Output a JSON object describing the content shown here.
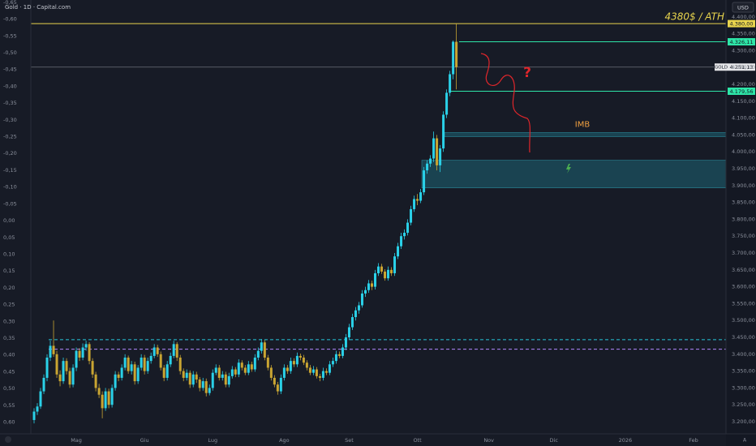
{
  "chart_data": {
    "type": "candlestick",
    "title": "Gold · 1D · Capital.com",
    "currency": "USD",
    "up_color": "#2ad1e8",
    "down_color": "#c9a532",
    "ohlc": [
      [
        3205,
        3240,
        3195,
        3230
      ],
      [
        3230,
        3255,
        3220,
        3245
      ],
      [
        3245,
        3300,
        3238,
        3290
      ],
      [
        3290,
        3340,
        3282,
        3330
      ],
      [
        3330,
        3400,
        3320,
        3390
      ],
      [
        3390,
        3440,
        3380,
        3425
      ],
      [
        3425,
        3500,
        3392,
        3400
      ],
      [
        3400,
        3410,
        3330,
        3340
      ],
      [
        3340,
        3352,
        3305,
        3320
      ],
      [
        3320,
        3390,
        3312,
        3380
      ],
      [
        3380,
        3388,
        3340,
        3350
      ],
      [
        3350,
        3360,
        3300,
        3310
      ],
      [
        3310,
        3370,
        3302,
        3360
      ],
      [
        3360,
        3420,
        3350,
        3410
      ],
      [
        3410,
        3418,
        3380,
        3390
      ],
      [
        3390,
        3432,
        3382,
        3420
      ],
      [
        3420,
        3440,
        3410,
        3430
      ],
      [
        3430,
        3436,
        3370,
        3380
      ],
      [
        3380,
        3388,
        3330,
        3340
      ],
      [
        3340,
        3348,
        3290,
        3300
      ],
      [
        3300,
        3312,
        3270,
        3280
      ],
      [
        3280,
        3290,
        3210,
        3240
      ],
      [
        3240,
        3300,
        3232,
        3290
      ],
      [
        3290,
        3298,
        3240,
        3250
      ],
      [
        3250,
        3310,
        3242,
        3300
      ],
      [
        3300,
        3350,
        3292,
        3340
      ],
      [
        3340,
        3348,
        3320,
        3330
      ],
      [
        3330,
        3370,
        3322,
        3360
      ],
      [
        3360,
        3400,
        3352,
        3390
      ],
      [
        3390,
        3396,
        3342,
        3350
      ],
      [
        3350,
        3380,
        3340,
        3370
      ],
      [
        3370,
        3378,
        3310,
        3320
      ],
      [
        3320,
        3368,
        3312,
        3360
      ],
      [
        3360,
        3400,
        3352,
        3390
      ],
      [
        3390,
        3398,
        3340,
        3350
      ],
      [
        3350,
        3390,
        3342,
        3380
      ],
      [
        3380,
        3405,
        3372,
        3395
      ],
      [
        3395,
        3430,
        3388,
        3420
      ],
      [
        3420,
        3428,
        3392,
        3400
      ],
      [
        3400,
        3408,
        3352,
        3360
      ],
      [
        3360,
        3368,
        3320,
        3330
      ],
      [
        3330,
        3380,
        3322,
        3370
      ],
      [
        3370,
        3405,
        3362,
        3395
      ],
      [
        3395,
        3440,
        3388,
        3430
      ],
      [
        3430,
        3436,
        3380,
        3390
      ],
      [
        3390,
        3398,
        3340,
        3350
      ],
      [
        3350,
        3358,
        3320,
        3330
      ],
      [
        3330,
        3355,
        3322,
        3345
      ],
      [
        3345,
        3352,
        3300,
        3310
      ],
      [
        3310,
        3350,
        3302,
        3340
      ],
      [
        3340,
        3348,
        3315,
        3325
      ],
      [
        3325,
        3332,
        3290,
        3300
      ],
      [
        3300,
        3330,
        3292,
        3320
      ],
      [
        3320,
        3328,
        3275,
        3285
      ],
      [
        3285,
        3310,
        3278,
        3300
      ],
      [
        3300,
        3355,
        3292,
        3345
      ],
      [
        3345,
        3370,
        3338,
        3360
      ],
      [
        3360,
        3368,
        3322,
        3330
      ],
      [
        3330,
        3350,
        3322,
        3340
      ],
      [
        3340,
        3348,
        3302,
        3310
      ],
      [
        3310,
        3345,
        3302,
        3335
      ],
      [
        3335,
        3365,
        3328,
        3355
      ],
      [
        3355,
        3362,
        3332,
        3340
      ],
      [
        3340,
        3385,
        3332,
        3375
      ],
      [
        3375,
        3382,
        3352,
        3360
      ],
      [
        3360,
        3368,
        3338,
        3345
      ],
      [
        3345,
        3380,
        3338,
        3370
      ],
      [
        3370,
        3378,
        3348,
        3355
      ],
      [
        3355,
        3400,
        3348,
        3390
      ],
      [
        3390,
        3420,
        3382,
        3410
      ],
      [
        3410,
        3445,
        3402,
        3435
      ],
      [
        3435,
        3442,
        3382,
        3390
      ],
      [
        3390,
        3398,
        3352,
        3360
      ],
      [
        3360,
        3368,
        3322,
        3330
      ],
      [
        3330,
        3338,
        3302,
        3310
      ],
      [
        3310,
        3318,
        3280,
        3290
      ],
      [
        3290,
        3340,
        3282,
        3330
      ],
      [
        3330,
        3370,
        3322,
        3360
      ],
      [
        3360,
        3368,
        3342,
        3350
      ],
      [
        3350,
        3390,
        3342,
        3380
      ],
      [
        3380,
        3388,
        3362,
        3370
      ],
      [
        3370,
        3405,
        3362,
        3395
      ],
      [
        3395,
        3402,
        3382,
        3390
      ],
      [
        3390,
        3398,
        3368,
        3375
      ],
      [
        3375,
        3382,
        3352,
        3360
      ],
      [
        3360,
        3368,
        3338,
        3345
      ],
      [
        3345,
        3365,
        3338,
        3355
      ],
      [
        3355,
        3362,
        3328,
        3335
      ],
      [
        3335,
        3342,
        3320,
        3330
      ],
      [
        3330,
        3360,
        3322,
        3350
      ],
      [
        3350,
        3358,
        3338,
        3345
      ],
      [
        3345,
        3380,
        3338,
        3370
      ],
      [
        3370,
        3390,
        3362,
        3380
      ],
      [
        3380,
        3410,
        3372,
        3400
      ],
      [
        3400,
        3408,
        3388,
        3395
      ],
      [
        3395,
        3430,
        3388,
        3420
      ],
      [
        3420,
        3460,
        3412,
        3450
      ],
      [
        3450,
        3490,
        3442,
        3480
      ],
      [
        3480,
        3520,
        3472,
        3510
      ],
      [
        3510,
        3540,
        3500,
        3530
      ],
      [
        3530,
        3555,
        3520,
        3545
      ],
      [
        3545,
        3590,
        3538,
        3580
      ],
      [
        3580,
        3600,
        3570,
        3590
      ],
      [
        3590,
        3620,
        3582,
        3610
      ],
      [
        3610,
        3618,
        3590,
        3600
      ],
      [
        3600,
        3650,
        3592,
        3640
      ],
      [
        3640,
        3670,
        3632,
        3660
      ],
      [
        3660,
        3668,
        3638,
        3645
      ],
      [
        3645,
        3652,
        3618,
        3625
      ],
      [
        3625,
        3660,
        3618,
        3650
      ],
      [
        3650,
        3658,
        3632,
        3640
      ],
      [
        3640,
        3700,
        3632,
        3690
      ],
      [
        3690,
        3730,
        3682,
        3720
      ],
      [
        3720,
        3760,
        3712,
        3750
      ],
      [
        3750,
        3770,
        3740,
        3760
      ],
      [
        3760,
        3800,
        3752,
        3790
      ],
      [
        3790,
        3840,
        3782,
        3830
      ],
      [
        3830,
        3870,
        3822,
        3860
      ],
      [
        3860,
        3875,
        3842,
        3855
      ],
      [
        3855,
        3890,
        3848,
        3880
      ],
      [
        3880,
        3955,
        3872,
        3945
      ],
      [
        3945,
        3975,
        3935,
        3965
      ],
      [
        3965,
        3990,
        3955,
        3980
      ],
      [
        3980,
        4060,
        3970,
        4040
      ],
      [
        4040,
        4050,
        3945,
        3960
      ],
      [
        3960,
        4020,
        3940,
        4010
      ],
      [
        4010,
        4120,
        4000,
        4110
      ],
      [
        4110,
        4185,
        4100,
        4175
      ],
      [
        4175,
        4240,
        4165,
        4230
      ],
      [
        4230,
        4330,
        4215,
        4326.11
      ],
      [
        4326.11,
        4380,
        4185,
        4251.13
      ]
    ],
    "xlim": [
      -1,
      213
    ],
    "xticks": [
      {
        "value": 13,
        "label": "Mag"
      },
      {
        "value": 34,
        "label": "Giu"
      },
      {
        "value": 55,
        "label": "Lug"
      },
      {
        "value": 77,
        "label": "Ago"
      },
      {
        "value": 97,
        "label": "Set"
      },
      {
        "value": 118,
        "label": "Ott"
      },
      {
        "value": 140,
        "label": "Nov"
      },
      {
        "value": 160,
        "label": "Dic"
      },
      {
        "value": 182,
        "label": "2026"
      },
      {
        "value": 203,
        "label": "Feb"
      }
    ],
    "ylim": [
      3164,
      4450
    ],
    "yticks": [
      {
        "value": 4400,
        "label": "4.400,00"
      },
      {
        "value": 4350,
        "label": "4.350,00"
      },
      {
        "value": 4300,
        "label": "4.300,00"
      },
      {
        "value": 4250,
        "label": "4.250,00"
      },
      {
        "value": 4200,
        "label": "4.200,00"
      },
      {
        "value": 4150,
        "label": "4.150,00"
      },
      {
        "value": 4100,
        "label": "4.100,00"
      },
      {
        "value": 4050,
        "label": "4.050,00"
      },
      {
        "value": 4000,
        "label": "4.000,00"
      },
      {
        "value": 3950,
        "label": "3.950,00"
      },
      {
        "value": 3900,
        "label": "3.900,00"
      },
      {
        "value": 3850,
        "label": "3.850,00"
      },
      {
        "value": 3800,
        "label": "3.800,00"
      },
      {
        "value": 3750,
        "label": "3.750,00"
      },
      {
        "value": 3700,
        "label": "3.700,00"
      },
      {
        "value": 3650,
        "label": "3.650,00"
      },
      {
        "value": 3600,
        "label": "3.600,00"
      },
      {
        "value": 3550,
        "label": "3.550,00"
      },
      {
        "value": 3500,
        "label": "3.500,00"
      },
      {
        "value": 3450,
        "label": "3.450,00"
      },
      {
        "value": 3400,
        "label": "3.400,00"
      },
      {
        "value": 3350,
        "label": "3.350,00"
      },
      {
        "value": 3300,
        "label": "3.300,00"
      },
      {
        "value": 3250,
        "label": "3.250,00"
      },
      {
        "value": 3200,
        "label": "3.200,00"
      }
    ],
    "y2lim": [
      0.635,
      -0.657
    ],
    "y2ticks": [
      {
        "value": -0.65,
        "label": "-0,65"
      },
      {
        "value": -0.6,
        "label": "-0,60"
      },
      {
        "value": -0.55,
        "label": "-0,55"
      },
      {
        "value": -0.5,
        "label": "-0,50"
      },
      {
        "value": -0.45,
        "label": "-0,45"
      },
      {
        "value": -0.4,
        "label": "-0,40"
      },
      {
        "value": -0.35,
        "label": "-0,35"
      },
      {
        "value": -0.3,
        "label": "-0,30"
      },
      {
        "value": -0.25,
        "label": "-0,25"
      },
      {
        "value": -0.2,
        "label": "-0,20"
      },
      {
        "value": -0.15,
        "label": "-0,15"
      },
      {
        "value": -0.1,
        "label": "-0,10"
      },
      {
        "value": -0.05,
        "label": "-0,05"
      },
      {
        "value": 0,
        "label": "0,00"
      },
      {
        "value": 0.05,
        "label": "0,05"
      },
      {
        "value": 0.1,
        "label": "0,10"
      },
      {
        "value": 0.15,
        "label": "0,15"
      },
      {
        "value": 0.2,
        "label": "0,20"
      },
      {
        "value": 0.25,
        "label": "0,25"
      },
      {
        "value": 0.3,
        "label": "0,30"
      },
      {
        "value": 0.35,
        "label": "0,35"
      },
      {
        "value": 0.4,
        "label": "0,40"
      },
      {
        "value": 0.45,
        "label": "0,45"
      },
      {
        "value": 0.5,
        "label": "0,50"
      },
      {
        "value": 0.55,
        "label": "0,55"
      },
      {
        "value": 0.6,
        "label": "0,60"
      }
    ],
    "grid": false,
    "levels": [
      {
        "value": 4380,
        "label": "4.380,00",
        "color": "#e8d44d"
      },
      {
        "value": 4326.11,
        "label": "4.326,11",
        "color": "#2ee6a8"
      },
      {
        "value": 4179.56,
        "label": "4.179,56",
        "color": "#2ee6a8"
      }
    ],
    "dashed_levels": [
      {
        "value": 3443,
        "color": "#26c6da"
      },
      {
        "value": 3415,
        "color": "#b388ff"
      }
    ],
    "last_price": {
      "name": "GOLD",
      "value": 4251.13,
      "label": "4.251,13"
    },
    "zones": [
      {
        "from": 4045,
        "to": 4057,
        "label": "IMB",
        "color": "#1d5f6e"
      },
      {
        "from": 3893,
        "to": 3975,
        "color": "#1d5f6e"
      }
    ],
    "annotations": {
      "ath": "4380$ / ATH",
      "question": "?"
    },
    "auto_button": "A"
  }
}
